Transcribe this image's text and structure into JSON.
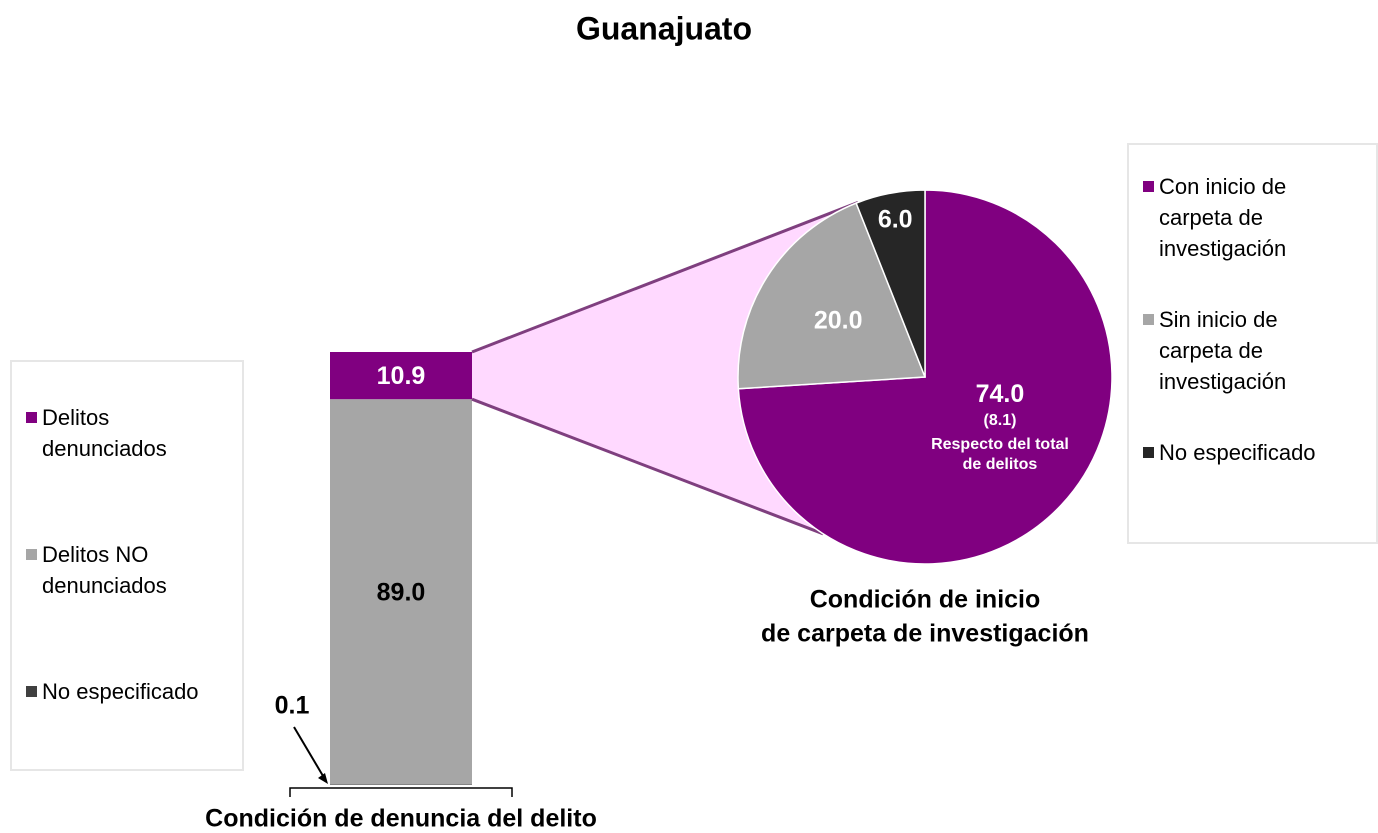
{
  "title": "Guanajuato",
  "chart_data": [
    {
      "type": "stacked_bar",
      "title": "Condición de denuncia del delito",
      "series": [
        {
          "name": "Delitos denunciados",
          "color": "#800080",
          "values": [
            10.9
          ],
          "value_labels": [
            "10.9"
          ]
        },
        {
          "name": "Delitos NO denunciados",
          "color": "#a6a6a6",
          "values": [
            89.0
          ],
          "value_labels": [
            "89.0"
          ]
        },
        {
          "name": "No especificado",
          "color": "#404040",
          "values": [
            0.1
          ],
          "value_labels": [
            "0.1"
          ]
        }
      ]
    },
    {
      "type": "pie",
      "title": [
        "Condición de inicio",
        "de carpeta de investigación"
      ],
      "categories": [
        "Con inicio de carpeta de investigación",
        "Sin inicio de carpeta de investigación",
        "No especificado"
      ],
      "values": [
        74.0,
        20.0,
        6.0
      ],
      "value_labels": [
        "74.0",
        "20.0",
        "6.0"
      ],
      "colors": [
        "#800080",
        "#a6a6a6",
        "#262626"
      ],
      "annotations": [
        "(8.1)",
        "Respecto del total de delitos"
      ]
    }
  ]
}
